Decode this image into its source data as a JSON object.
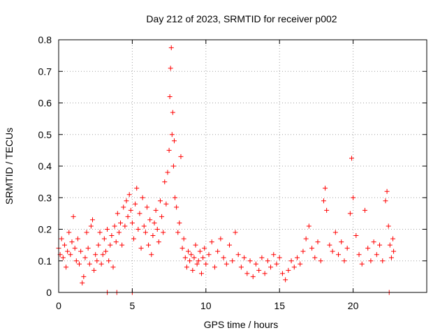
{
  "chart_data": {
    "type": "scatter",
    "title": "Day 212 of 2023, SRMTID for receiver p002",
    "xlabel": "GPS time / hours",
    "ylabel": "SRMTID / TECUs",
    "xlim": [
      0,
      25
    ],
    "ylim": [
      0,
      0.8
    ],
    "xticks": [
      0,
      5,
      10,
      15,
      20
    ],
    "xtick_labels": [
      "0",
      "5",
      "10",
      "15",
      "20"
    ],
    "yticks": [
      0,
      0.1,
      0.2,
      0.3,
      0.4,
      0.5,
      0.6,
      0.7,
      0.8
    ],
    "ytick_labels": [
      "0",
      "0.1",
      "0.2",
      "0.3",
      "0.4",
      "0.5",
      "0.6",
      "0.7",
      "0.8"
    ],
    "grid": true,
    "series": [
      {
        "name": "SRMTID",
        "color": "#ff0000",
        "marker": "plus",
        "points": [
          [
            0.0,
            0.14
          ],
          [
            0.1,
            0.12
          ],
          [
            0.2,
            0.17
          ],
          [
            0.3,
            0.11
          ],
          [
            0.4,
            0.15
          ],
          [
            0.5,
            0.08
          ],
          [
            0.6,
            0.13
          ],
          [
            0.7,
            0.19
          ],
          [
            0.8,
            0.12
          ],
          [
            0.9,
            0.16
          ],
          [
            1.0,
            0.24
          ],
          [
            1.1,
            0.14
          ],
          [
            1.2,
            0.1
          ],
          [
            1.3,
            0.17
          ],
          [
            1.4,
            0.09
          ],
          [
            1.5,
            0.13
          ],
          [
            1.6,
            0.03
          ],
          [
            1.7,
            0.05
          ],
          [
            1.8,
            0.11
          ],
          [
            1.9,
            0.19
          ],
          [
            2.0,
            0.14
          ],
          [
            2.1,
            0.09
          ],
          [
            2.2,
            0.21
          ],
          [
            2.3,
            0.23
          ],
          [
            2.4,
            0.07
          ],
          [
            2.5,
            0.12
          ],
          [
            2.6,
            0.1
          ],
          [
            2.7,
            0.15
          ],
          [
            2.8,
            0.19
          ],
          [
            2.9,
            0.09
          ],
          [
            3.0,
            0.12
          ],
          [
            3.1,
            0.17
          ],
          [
            3.2,
            0.13
          ],
          [
            3.3,
            0.2
          ],
          [
            3.4,
            0.1
          ],
          [
            3.5,
            0.15
          ],
          [
            3.6,
            0.18
          ],
          [
            3.7,
            0.08
          ],
          [
            3.8,
            0.21
          ],
          [
            3.9,
            0.16
          ],
          [
            4.0,
            0.25
          ],
          [
            4.1,
            0.19
          ],
          [
            4.2,
            0.22
          ],
          [
            4.3,
            0.15
          ],
          [
            4.4,
            0.27
          ],
          [
            4.5,
            0.21
          ],
          [
            4.6,
            0.29
          ],
          [
            4.7,
            0.24
          ],
          [
            4.8,
            0.31
          ],
          [
            4.9,
            0.26
          ],
          [
            5.0,
            0.22
          ],
          [
            5.1,
            0.17
          ],
          [
            5.2,
            0.28
          ],
          [
            5.3,
            0.33
          ],
          [
            5.4,
            0.2
          ],
          [
            5.5,
            0.25
          ],
          [
            5.6,
            0.14
          ],
          [
            5.7,
            0.3
          ],
          [
            5.8,
            0.21
          ],
          [
            5.9,
            0.19
          ],
          [
            6.0,
            0.27
          ],
          [
            6.1,
            0.15
          ],
          [
            6.2,
            0.23
          ],
          [
            6.3,
            0.12
          ],
          [
            6.4,
            0.18
          ],
          [
            6.5,
            0.22
          ],
          [
            6.6,
            0.26
          ],
          [
            6.7,
            0.2
          ],
          [
            6.8,
            0.16
          ],
          [
            6.9,
            0.29
          ],
          [
            7.0,
            0.24
          ],
          [
            7.1,
            0.19
          ],
          [
            7.2,
            0.35
          ],
          [
            7.3,
            0.28
          ],
          [
            7.4,
            0.38
          ],
          [
            7.5,
            0.45
          ],
          [
            7.55,
            0.62
          ],
          [
            7.6,
            0.71
          ],
          [
            7.65,
            0.775
          ],
          [
            7.7,
            0.5
          ],
          [
            7.75,
            0.57
          ],
          [
            7.8,
            0.4
          ],
          [
            7.85,
            0.48
          ],
          [
            7.9,
            0.3
          ],
          [
            8.0,
            0.27
          ],
          [
            8.1,
            0.19
          ],
          [
            8.2,
            0.22
          ],
          [
            8.3,
            0.43
          ],
          [
            8.4,
            0.14
          ],
          [
            8.5,
            0.17
          ],
          [
            8.6,
            0.11
          ],
          [
            8.7,
            0.08
          ],
          [
            8.8,
            0.13
          ],
          [
            8.9,
            0.1
          ],
          [
            9.0,
            0.12
          ],
          [
            9.1,
            0.07
          ],
          [
            9.2,
            0.11
          ],
          [
            9.3,
            0.15
          ],
          [
            9.4,
            0.09
          ],
          [
            9.5,
            0.1
          ],
          [
            9.6,
            0.13
          ],
          [
            9.7,
            0.06
          ],
          [
            9.8,
            0.11
          ],
          [
            9.9,
            0.14
          ],
          [
            10.0,
            0.09
          ],
          [
            10.2,
            0.12
          ],
          [
            10.4,
            0.16
          ],
          [
            10.6,
            0.08
          ],
          [
            10.8,
            0.13
          ],
          [
            11.0,
            0.17
          ],
          [
            11.2,
            0.11
          ],
          [
            11.4,
            0.09
          ],
          [
            11.6,
            0.15
          ],
          [
            11.8,
            0.1
          ],
          [
            12.0,
            0.19
          ],
          [
            12.2,
            0.12
          ],
          [
            12.4,
            0.08
          ],
          [
            12.6,
            0.11
          ],
          [
            12.8,
            0.06
          ],
          [
            13.0,
            0.1
          ],
          [
            13.2,
            0.05
          ],
          [
            13.4,
            0.09
          ],
          [
            13.6,
            0.07
          ],
          [
            13.8,
            0.11
          ],
          [
            14.0,
            0.06
          ],
          [
            14.2,
            0.1
          ],
          [
            14.4,
            0.08
          ],
          [
            14.6,
            0.12
          ],
          [
            14.8,
            0.09
          ],
          [
            15.0,
            0.11
          ],
          [
            15.2,
            0.06
          ],
          [
            15.4,
            0.04
          ],
          [
            15.6,
            0.07
          ],
          [
            15.8,
            0.1
          ],
          [
            16.0,
            0.08
          ],
          [
            16.2,
            0.11
          ],
          [
            16.4,
            0.09
          ],
          [
            16.6,
            0.13
          ],
          [
            16.8,
            0.17
          ],
          [
            17.0,
            0.21
          ],
          [
            17.2,
            0.14
          ],
          [
            17.4,
            0.11
          ],
          [
            17.6,
            0.16
          ],
          [
            17.8,
            0.1
          ],
          [
            18.0,
            0.29
          ],
          [
            18.1,
            0.33
          ],
          [
            18.2,
            0.26
          ],
          [
            18.4,
            0.15
          ],
          [
            18.6,
            0.13
          ],
          [
            18.8,
            0.19
          ],
          [
            19.0,
            0.12
          ],
          [
            19.2,
            0.16
          ],
          [
            19.4,
            0.1
          ],
          [
            19.6,
            0.14
          ],
          [
            19.8,
            0.25
          ],
          [
            19.9,
            0.425
          ],
          [
            20.0,
            0.3
          ],
          [
            20.2,
            0.18
          ],
          [
            20.4,
            0.12
          ],
          [
            20.6,
            0.09
          ],
          [
            20.8,
            0.26
          ],
          [
            21.0,
            0.14
          ],
          [
            21.2,
            0.1
          ],
          [
            21.4,
            0.16
          ],
          [
            21.6,
            0.12
          ],
          [
            21.8,
            0.15
          ],
          [
            22.0,
            0.1
          ],
          [
            22.2,
            0.29
          ],
          [
            22.3,
            0.32
          ],
          [
            22.4,
            0.21
          ],
          [
            22.5,
            0.15
          ],
          [
            22.6,
            0.11
          ],
          [
            22.7,
            0.17
          ],
          [
            22.75,
            0.13
          ],
          [
            3.3,
            0.0
          ],
          [
            3.95,
            0.0
          ],
          [
            5.0,
            0.0
          ],
          [
            22.45,
            0.0
          ]
        ]
      }
    ]
  }
}
